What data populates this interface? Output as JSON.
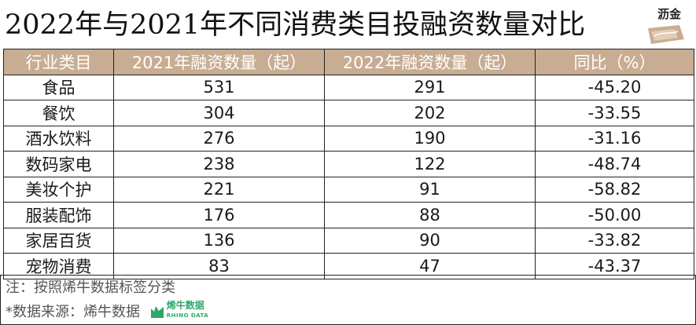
{
  "title": "2022年与2021年不同消费类目投融资数量对比",
  "logo_text": "沥金",
  "colors": {
    "header_bg": "#c8ad93",
    "border": "#222222",
    "rhino_green": "#2fa66a"
  },
  "chart_data": {
    "type": "table",
    "title": "2022年与2021年不同消费类目投融资数量对比",
    "columns": [
      "行业类目",
      "2021年融资数量（起）",
      "2022年融资数量（起）",
      "同比（%）"
    ],
    "rows": [
      {
        "category": "食品",
        "y2021": "531",
        "y2022": "291",
        "yoy": "-45.20"
      },
      {
        "category": "餐饮",
        "y2021": "304",
        "y2022": "202",
        "yoy": "-33.55"
      },
      {
        "category": "酒水饮料",
        "y2021": "276",
        "y2022": "190",
        "yoy": "-31.16"
      },
      {
        "category": "数码家电",
        "y2021": "238",
        "y2022": "122",
        "yoy": "-48.74"
      },
      {
        "category": "美妆个护",
        "y2021": "221",
        "y2022": "91",
        "yoy": "-58.82"
      },
      {
        "category": "服装配饰",
        "y2021": "176",
        "y2022": "88",
        "yoy": "-50.00"
      },
      {
        "category": "家居百货",
        "y2021": "136",
        "y2022": "90",
        "yoy": "-33.82"
      },
      {
        "category": "宠物消费",
        "y2021": "83",
        "y2022": "47",
        "yoy": "-43.37"
      }
    ]
  },
  "footer": {
    "note": "注：按照烯牛数据标签分类",
    "source": "*数据来源：烯牛数据",
    "rhino_logo_cn": "烯牛数据",
    "rhino_logo_en": "RHINO DATA"
  }
}
